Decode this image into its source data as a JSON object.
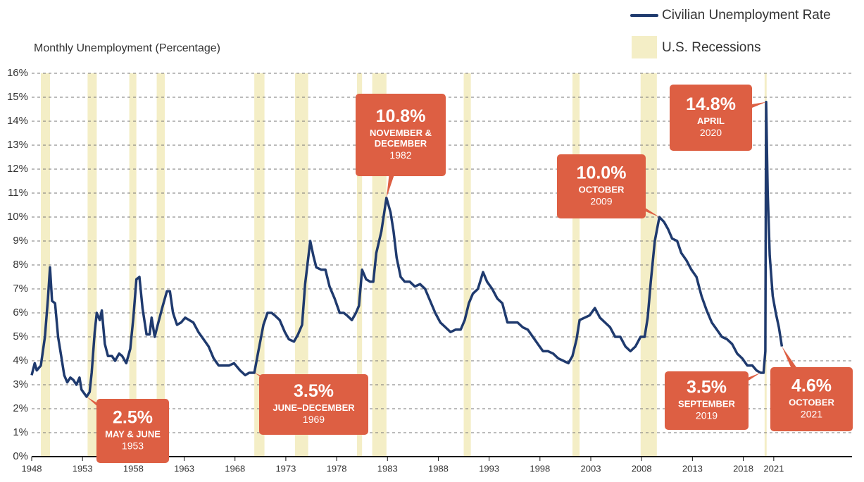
{
  "chart_data": {
    "type": "line",
    "ylabel": "Monthly Unemployment (Percentage)",
    "xlim": [
      1948,
      2028.7
    ],
    "ylim": [
      0,
      16
    ],
    "xticks": [
      1948,
      1953,
      1958,
      1963,
      1968,
      1973,
      1978,
      1983,
      1988,
      1993,
      1998,
      2003,
      2008,
      2013,
      2018,
      2021
    ],
    "yticks": [
      {
        "value": 0,
        "label": "0%"
      },
      {
        "value": 1,
        "label": "1%"
      },
      {
        "value": 2,
        "label": "2%"
      },
      {
        "value": 3,
        "label": "3%"
      },
      {
        "value": 4,
        "label": "4%"
      },
      {
        "value": 5,
        "label": "5%"
      },
      {
        "value": 6,
        "label": "6%"
      },
      {
        "value": 7,
        "label": "7%"
      },
      {
        "value": 8,
        "label": "8%"
      },
      {
        "value": 9,
        "label": "9%"
      },
      {
        "value": 10,
        "label": "10%"
      },
      {
        "value": 11,
        "label": "11%"
      },
      {
        "value": 12,
        "label": "12%"
      },
      {
        "value": 13,
        "label": "13%"
      },
      {
        "value": 14,
        "label": "14%"
      },
      {
        "value": 15,
        "label": "15%"
      },
      {
        "value": 16,
        "label": "16%"
      }
    ],
    "grid": true,
    "legend": "top-right",
    "recessions": {
      "name": "U.S. Recessions",
      "color": "#f4eec6",
      "spans": [
        [
          1948.9,
          1949.8
        ],
        [
          1953.5,
          1954.4
        ],
        [
          1957.6,
          1958.3
        ],
        [
          1960.3,
          1961.1
        ],
        [
          1969.9,
          1970.9
        ],
        [
          1973.9,
          1975.2
        ],
        [
          1980.0,
          1980.5
        ],
        [
          1981.5,
          1982.9
        ],
        [
          1990.5,
          1991.2
        ],
        [
          2001.2,
          2001.9
        ],
        [
          2007.9,
          2009.5
        ],
        [
          2020.1,
          2020.3
        ]
      ]
    },
    "x": [
      1948.0,
      1948.3,
      1948.5,
      1948.9,
      1949.3,
      1949.6,
      1949.8,
      1950.0,
      1950.3,
      1950.6,
      1950.9,
      1951.2,
      1951.5,
      1951.8,
      1952.1,
      1952.4,
      1952.7,
      1952.9,
      1953.4,
      1953.7,
      1953.9,
      1954.2,
      1954.4,
      1954.7,
      1954.9,
      1955.2,
      1955.5,
      1955.9,
      1956.2,
      1956.6,
      1956.9,
      1957.3,
      1957.7,
      1958.0,
      1958.3,
      1958.6,
      1958.9,
      1959.3,
      1959.6,
      1959.8,
      1960.1,
      1960.4,
      1960.9,
      1961.3,
      1961.6,
      1961.9,
      1962.3,
      1962.7,
      1963.1,
      1963.5,
      1963.9,
      1964.4,
      1964.9,
      1965.4,
      1965.9,
      1966.4,
      1966.9,
      1967.4,
      1967.9,
      1968.5,
      1969.0,
      1969.4,
      1969.9,
      1970.3,
      1970.8,
      1971.2,
      1971.6,
      1971.9,
      1972.4,
      1972.9,
      1973.3,
      1973.8,
      1974.2,
      1974.6,
      1974.9,
      1975.4,
      1975.7,
      1976.0,
      1976.5,
      1976.9,
      1977.3,
      1977.8,
      1978.3,
      1978.7,
      1979.0,
      1979.5,
      1979.9,
      1980.2,
      1980.5,
      1980.9,
      1981.3,
      1981.6,
      1981.9,
      1982.4,
      1982.9,
      1983.3,
      1983.6,
      1983.9,
      1984.3,
      1984.7,
      1985.2,
      1985.7,
      1986.2,
      1986.7,
      1987.2,
      1987.7,
      1988.2,
      1988.7,
      1989.2,
      1989.7,
      1990.2,
      1990.6,
      1991.0,
      1991.4,
      1991.9,
      1992.4,
      1992.8,
      1993.3,
      1993.8,
      1994.3,
      1994.8,
      1995.3,
      1995.8,
      1996.3,
      1996.8,
      1997.3,
      1997.8,
      1998.3,
      1998.8,
      1999.3,
      1999.8,
      2000.3,
      2000.8,
      2001.2,
      2001.6,
      2001.9,
      2002.4,
      2002.9,
      2003.4,
      2003.9,
      2004.4,
      2004.9,
      2005.4,
      2005.9,
      2006.4,
      2006.9,
      2007.4,
      2007.9,
      2008.3,
      2008.6,
      2008.9,
      2009.3,
      2009.75,
      2010.2,
      2010.6,
      2011.0,
      2011.5,
      2011.9,
      2012.4,
      2012.9,
      2013.4,
      2013.9,
      2014.4,
      2014.9,
      2015.4,
      2015.9,
      2016.4,
      2016.9,
      2017.4,
      2017.9,
      2018.4,
      2018.9,
      2019.3,
      2019.7,
      2020.0,
      2020.17,
      2020.25,
      2020.4,
      2020.6,
      2020.9,
      2021.2,
      2021.5,
      2021.8
    ],
    "series": [
      {
        "name": "Civilian Unemployment Rate",
        "color": "#1f3a6e",
        "values": [
          3.4,
          3.9,
          3.6,
          3.8,
          5.0,
          6.6,
          7.9,
          6.5,
          6.4,
          5.0,
          4.2,
          3.4,
          3.1,
          3.3,
          3.2,
          3.0,
          3.3,
          2.8,
          2.5,
          2.7,
          3.5,
          5.2,
          6.0,
          5.7,
          6.1,
          4.7,
          4.2,
          4.2,
          4.0,
          4.3,
          4.2,
          3.9,
          4.5,
          5.8,
          7.4,
          7.5,
          6.2,
          5.1,
          5.1,
          5.8,
          5.0,
          5.5,
          6.3,
          6.9,
          6.9,
          6.0,
          5.5,
          5.6,
          5.8,
          5.7,
          5.6,
          5.2,
          4.9,
          4.6,
          4.1,
          3.8,
          3.8,
          3.8,
          3.9,
          3.6,
          3.4,
          3.5,
          3.5,
          4.4,
          5.5,
          6.0,
          6.0,
          5.9,
          5.7,
          5.2,
          4.9,
          4.8,
          5.1,
          5.5,
          7.2,
          9.0,
          8.4,
          7.9,
          7.8,
          7.8,
          7.1,
          6.6,
          6.0,
          6.0,
          5.9,
          5.7,
          6.0,
          6.3,
          7.8,
          7.4,
          7.3,
          7.3,
          8.5,
          9.4,
          10.8,
          10.2,
          9.4,
          8.3,
          7.5,
          7.3,
          7.3,
          7.1,
          7.2,
          7.0,
          6.5,
          6.0,
          5.6,
          5.4,
          5.2,
          5.3,
          5.3,
          5.7,
          6.4,
          6.8,
          7.0,
          7.7,
          7.3,
          7.0,
          6.6,
          6.4,
          5.6,
          5.6,
          5.6,
          5.4,
          5.3,
          5.0,
          4.7,
          4.4,
          4.4,
          4.3,
          4.1,
          4.0,
          3.9,
          4.2,
          4.9,
          5.7,
          5.8,
          5.9,
          6.2,
          5.8,
          5.6,
          5.4,
          5.0,
          5.0,
          4.6,
          4.4,
          4.6,
          5.0,
          5.0,
          5.8,
          7.3,
          9.0,
          10.0,
          9.8,
          9.5,
          9.1,
          9.0,
          8.5,
          8.2,
          7.8,
          7.5,
          6.7,
          6.1,
          5.6,
          5.3,
          5.0,
          4.9,
          4.7,
          4.3,
          4.1,
          3.8,
          3.8,
          3.6,
          3.5,
          3.5,
          4.4,
          14.8,
          11.1,
          8.4,
          6.7,
          6.0,
          5.4,
          4.6
        ]
      }
    ],
    "annotations": [
      {
        "x": 1953.4,
        "y": 2.5,
        "value_label": "2.5%",
        "label": [
          "MAY & JUNE"
        ],
        "date": "1953"
      },
      {
        "x": 1969.9,
        "y": 3.5,
        "value_label": "3.5%",
        "label": [
          "JUNE–DECEMBER"
        ],
        "date": "1969"
      },
      {
        "x": 1982.9,
        "y": 10.8,
        "value_label": "10.8%",
        "label": [
          "NOVEMBER &",
          "DECEMBER"
        ],
        "date": "1982"
      },
      {
        "x": 2009.75,
        "y": 10.0,
        "value_label": "10.0%",
        "label": [
          "OCTOBER"
        ],
        "date": "2009"
      },
      {
        "x": 2020.25,
        "y": 14.8,
        "value_label": "14.8%",
        "label": [
          "APRIL"
        ],
        "date": "2020"
      },
      {
        "x": 2019.7,
        "y": 3.5,
        "value_label": "3.5%",
        "label": [
          "SEPTEMBER"
        ],
        "date": "2019"
      },
      {
        "x": 2021.8,
        "y": 4.6,
        "value_label": "4.6%",
        "label": [
          "OCTOBER"
        ],
        "date": "2021"
      }
    ],
    "annotation_color": "#dd5f43"
  }
}
